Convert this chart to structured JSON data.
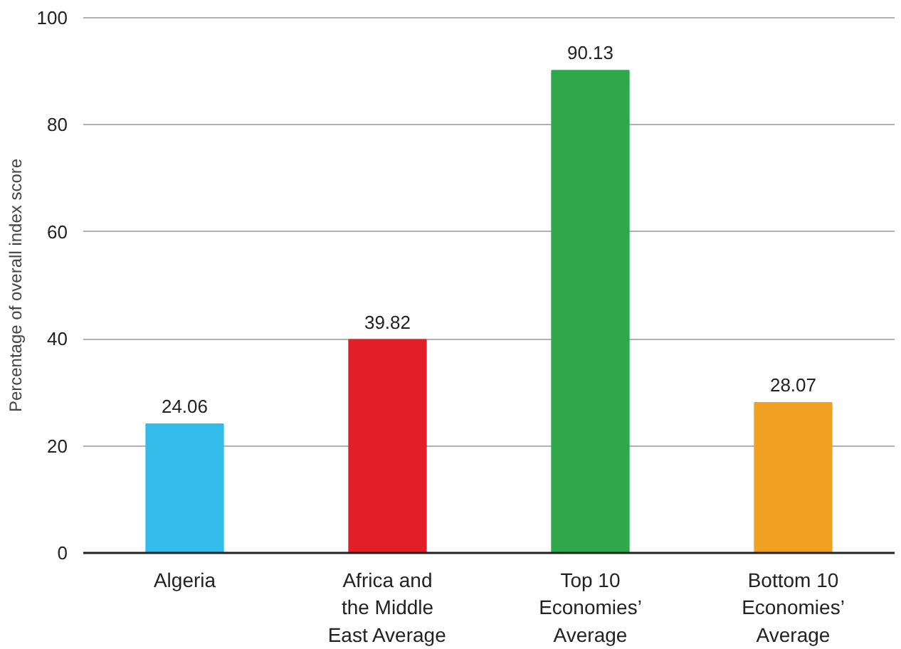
{
  "chart_data": {
    "type": "bar",
    "categories": [
      "Algeria",
      "Africa and\nthe Middle\nEast Average",
      "Top 10\nEconomies’\nAverage",
      "Bottom 10\nEconomies’\nAverage"
    ],
    "values": [
      24.06,
      39.82,
      90.13,
      28.07
    ],
    "colors": [
      "#33bbea",
      "#e21f26",
      "#2ea84a",
      "#f0a023"
    ],
    "ylabel": "Percentage of overall index score",
    "ylim": [
      0,
      100
    ],
    "yticks": [
      0,
      20,
      40,
      60,
      80,
      100
    ],
    "grid": "y",
    "data_labels": true
  }
}
